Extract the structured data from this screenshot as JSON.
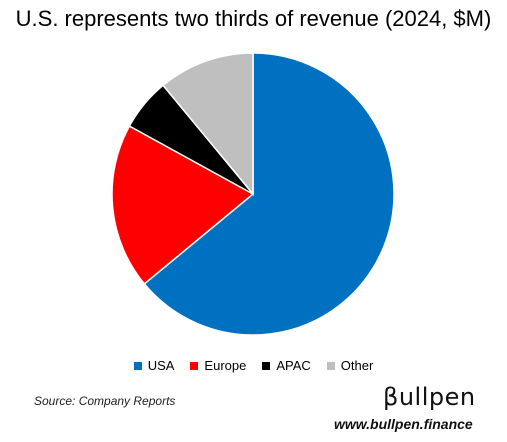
{
  "chart_data": {
    "type": "pie",
    "title": "U.S. represents two thirds of revenue (2024, $M)",
    "slices": [
      {
        "label": "USA",
        "value": 64,
        "color": "#0070C0"
      },
      {
        "label": "Europe",
        "value": 19,
        "color": "#FF0000"
      },
      {
        "label": "APAC",
        "value": 6,
        "color": "#000000"
      },
      {
        "label": "Other",
        "value": 11,
        "color": "#BFBFBF"
      }
    ],
    "legend_position": "bottom"
  },
  "footer": {
    "source": "Source: Company Reports",
    "brand_logo": "βullpen",
    "brand_url": "www.bullpen.finance"
  }
}
